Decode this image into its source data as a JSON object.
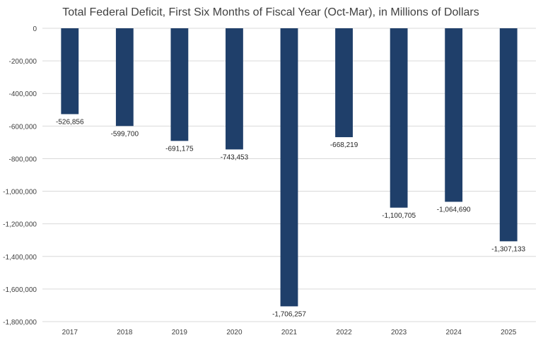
{
  "chart_data": {
    "type": "bar",
    "title": "Total Federal Deficit, First Six Months of Fiscal Year (Oct-Mar), in Millions of Dollars",
    "xlabel": "",
    "ylabel": "",
    "categories": [
      "2017",
      "2018",
      "2019",
      "2020",
      "2021",
      "2022",
      "2023",
      "2024",
      "2025"
    ],
    "values": [
      -526856,
      -599700,
      -691175,
      -743453,
      -1706257,
      -668219,
      -1100705,
      -1064690,
      -1307133
    ],
    "data_labels": [
      "-526,856",
      "-599,700",
      "-691,175",
      "-743,453",
      "-1,706,257",
      "-668,219",
      "-1,100,705",
      "-1,064,690",
      "-1,307,133"
    ],
    "ylim": [
      -1800000,
      0
    ],
    "yticks": [
      0,
      -200000,
      -400000,
      -600000,
      -800000,
      -1000000,
      -1200000,
      -1400000,
      -1600000,
      -1800000
    ],
    "ytick_labels": [
      "0",
      "-200,000",
      "-400,000",
      "-600,000",
      "-800,000",
      "-1,000,000",
      "-1,200,000",
      "-1,400,000",
      "-1,600,000",
      "-1,800,000"
    ],
    "grid": true,
    "legend": "none",
    "bar_color": "#1f3f6a"
  }
}
